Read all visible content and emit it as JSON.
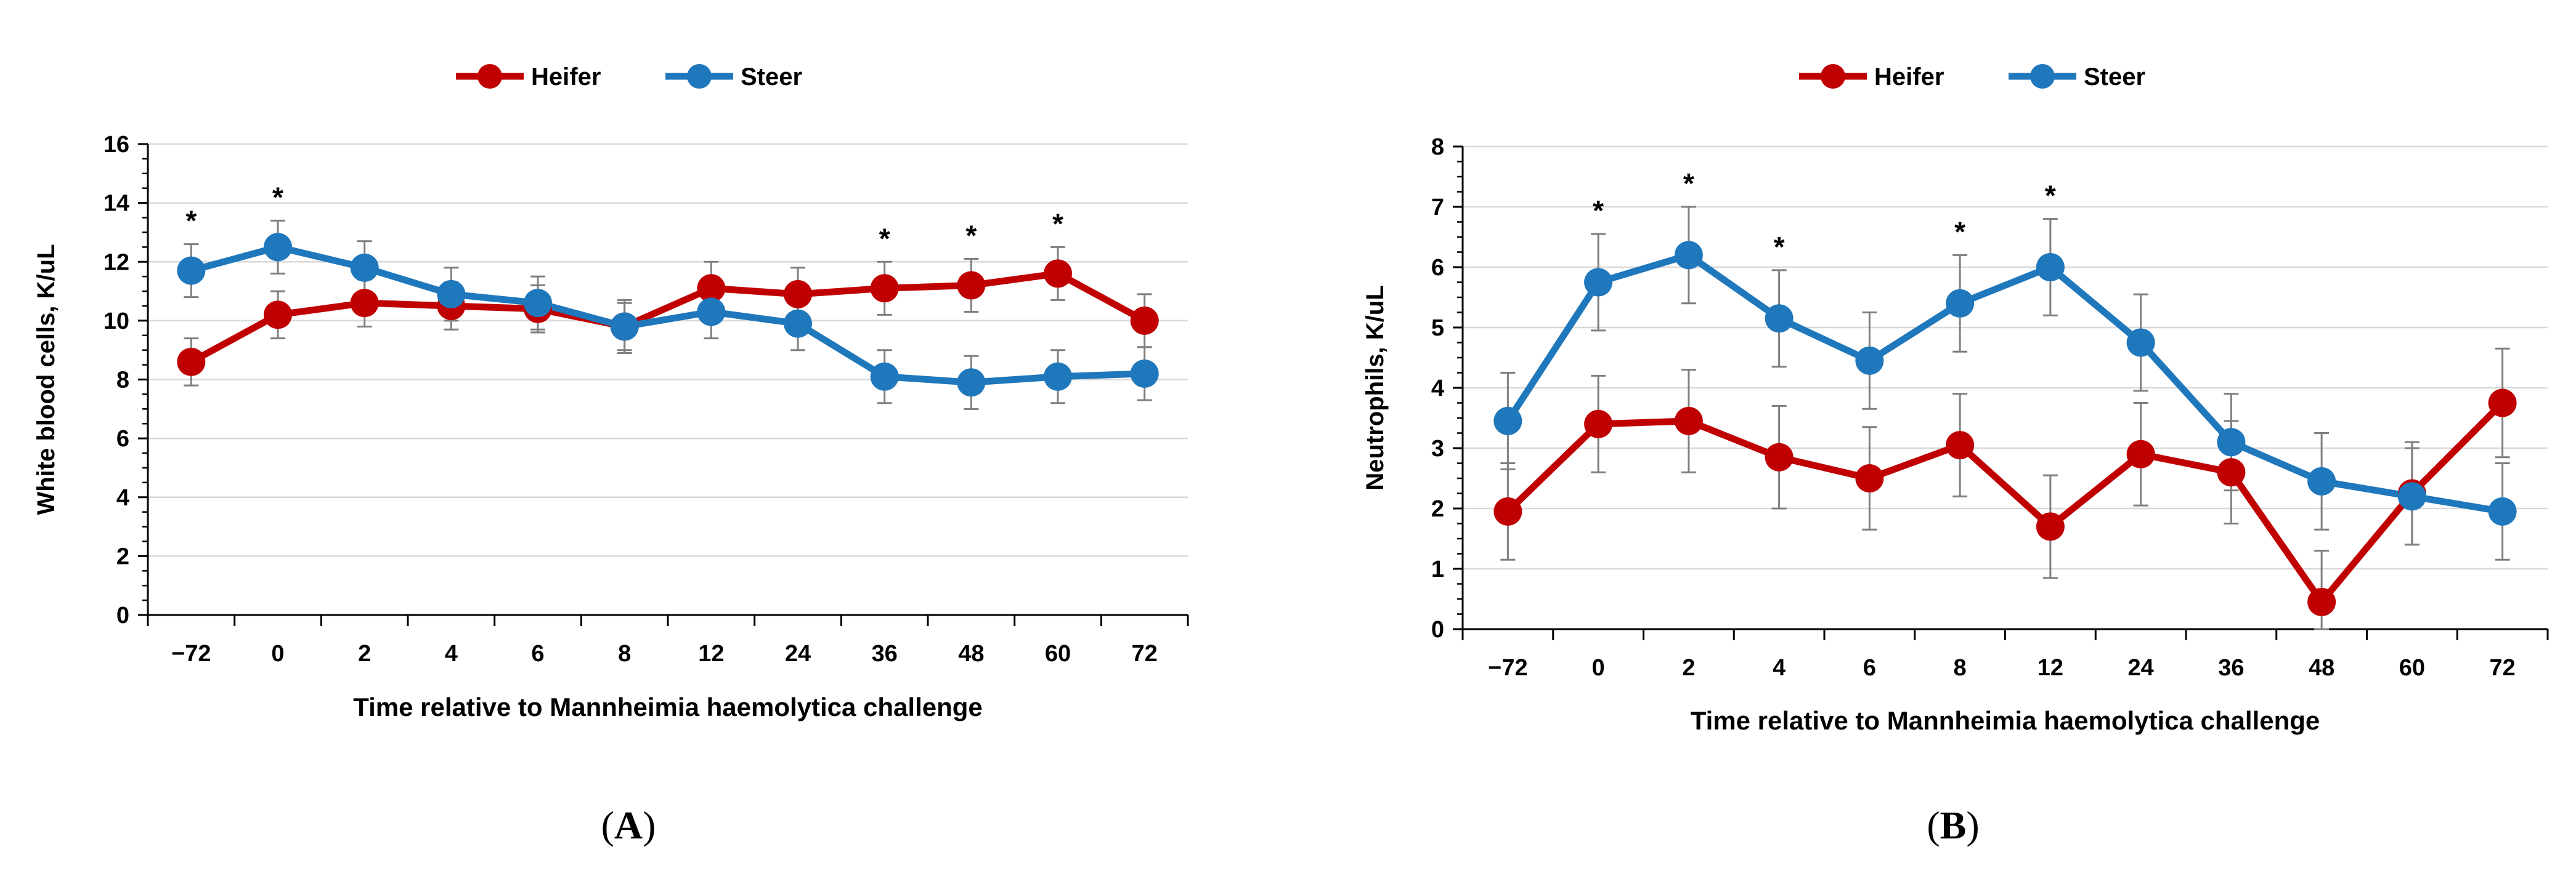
{
  "colors": {
    "heifer": "#C00000",
    "steer": "#1F77BC",
    "grid": "#D9D9D9",
    "axis": "#000000",
    "error": "#7F7F7F"
  },
  "chart_data": [
    {
      "panel": "A",
      "type": "line",
      "categories": [
        "−72",
        "0",
        "2",
        "4",
        "6",
        "8",
        "12",
        "24",
        "36",
        "48",
        "60",
        "72"
      ],
      "series": [
        {
          "name": "Heifer",
          "values": [
            8.6,
            10.2,
            10.6,
            10.5,
            10.4,
            9.8,
            11.1,
            10.9,
            11.1,
            11.2,
            11.6,
            10.0
          ],
          "errors": [
            0.8,
            0.8,
            0.8,
            0.8,
            0.8,
            0.8,
            0.9,
            0.9,
            0.9,
            0.9,
            0.9,
            0.9
          ]
        },
        {
          "name": "Steer",
          "values": [
            11.7,
            12.5,
            11.8,
            10.9,
            10.6,
            9.8,
            10.3,
            9.9,
            8.1,
            7.9,
            8.1,
            8.2
          ],
          "errors": [
            0.9,
            0.9,
            0.9,
            0.9,
            0.9,
            0.9,
            0.9,
            0.9,
            0.9,
            0.9,
            0.9,
            0.9
          ]
        }
      ],
      "significant": [
        true,
        true,
        false,
        false,
        false,
        false,
        false,
        false,
        true,
        true,
        true,
        false
      ],
      "star_label": "*",
      "title": "",
      "xlabel": "Time relative to Mannheimia haemolytica challenge",
      "ylabel": "White blood cells, K/uL",
      "ylim": [
        0,
        16
      ],
      "yticks": [
        0,
        2,
        4,
        6,
        8,
        10,
        12,
        14,
        16
      ],
      "ytick_labels": [
        "0",
        "2",
        "4",
        "6",
        "8",
        "10",
        "12",
        "14",
        "16"
      ],
      "legend_position": "top-center",
      "panel_label": "A"
    },
    {
      "panel": "B",
      "type": "line",
      "categories": [
        "−72",
        "0",
        "2",
        "4",
        "6",
        "8",
        "12",
        "24",
        "36",
        "48",
        "60",
        "72"
      ],
      "series": [
        {
          "name": "Heifer",
          "values": [
            1.95,
            3.4,
            3.45,
            2.85,
            2.5,
            3.05,
            1.7,
            2.9,
            2.6,
            0.45,
            2.25,
            3.75
          ],
          "errors": [
            0.8,
            0.8,
            0.85,
            0.85,
            0.85,
            0.85,
            0.85,
            0.85,
            0.85,
            0.85,
            0.85,
            0.9
          ]
        },
        {
          "name": "Steer",
          "values": [
            3.45,
            5.75,
            6.2,
            5.15,
            4.45,
            5.4,
            6.0,
            4.75,
            3.1,
            2.45,
            2.2,
            1.95
          ],
          "errors": [
            0.8,
            0.8,
            0.8,
            0.8,
            0.8,
            0.8,
            0.8,
            0.8,
            0.8,
            0.8,
            0.8,
            0.8
          ]
        }
      ],
      "significant": [
        false,
        true,
        true,
        true,
        false,
        true,
        true,
        false,
        false,
        false,
        false,
        false
      ],
      "star_label": "*",
      "title": "",
      "xlabel": "Time relative to Mannheimia haemolytica challenge",
      "ylabel": "Neutrophils, K/uL",
      "ylim": [
        0,
        8
      ],
      "yticks": [
        0,
        1,
        2,
        3,
        4,
        5,
        6,
        7,
        8
      ],
      "ytick_labels": [
        "0",
        "1",
        "2",
        "3",
        "4",
        "5",
        "6",
        "7",
        "8"
      ],
      "legend_position": "top-center",
      "panel_label": "B"
    }
  ],
  "panel_labels": [
    "A",
    "B"
  ]
}
